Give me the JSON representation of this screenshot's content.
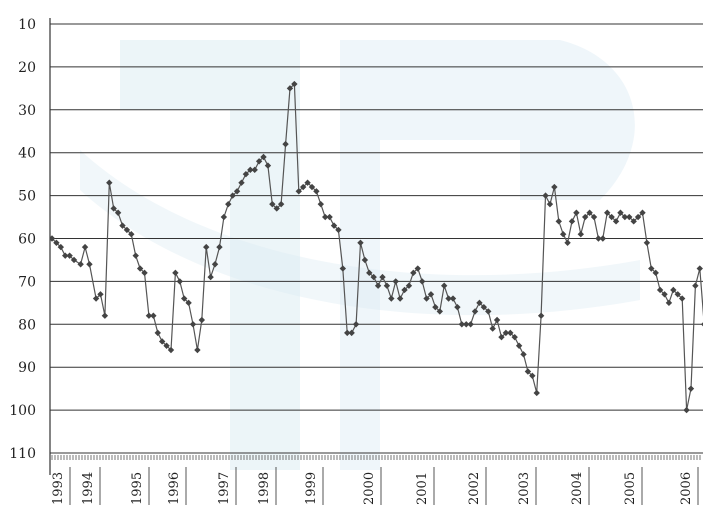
{
  "chart_data": {
    "type": "line",
    "title": "",
    "xlabel": "",
    "ylabel": "",
    "y_reversed": true,
    "ylim": [
      10,
      110
    ],
    "y_ticks": [
      "10",
      "20",
      "30",
      "40",
      "50",
      "60",
      "70",
      "80",
      "90",
      "100",
      "110"
    ],
    "x_ticks": [
      "1993",
      "1994",
      "1995",
      "1996",
      "1997",
      "1998",
      "1999",
      "2000",
      "2001",
      "2002",
      "2003",
      "2004",
      "2005",
      "2006"
    ],
    "grid": true,
    "marker": "diamond",
    "colors": {
      "line": "#555555",
      "marker": "#444444",
      "watermark": "#dcecf3"
    },
    "series": [
      {
        "values": [
          [
            1993.0,
            60
          ],
          [
            1993.1,
            61
          ],
          [
            1993.2,
            62
          ],
          [
            1993.3,
            64
          ],
          [
            1993.4,
            64
          ],
          [
            1993.5,
            65
          ],
          [
            1993.65,
            66
          ],
          [
            1993.75,
            62
          ],
          [
            1993.85,
            66
          ],
          [
            1994.0,
            74
          ],
          [
            1994.1,
            73
          ],
          [
            1994.2,
            78
          ],
          [
            1994.3,
            47
          ],
          [
            1994.4,
            53
          ],
          [
            1994.5,
            54
          ],
          [
            1994.6,
            57
          ],
          [
            1994.7,
            58
          ],
          [
            1994.8,
            59
          ],
          [
            1994.9,
            64
          ],
          [
            1995.0,
            67
          ],
          [
            1995.1,
            68
          ],
          [
            1995.2,
            78
          ],
          [
            1995.3,
            78
          ],
          [
            1995.4,
            82
          ],
          [
            1995.5,
            84
          ],
          [
            1995.6,
            85
          ],
          [
            1995.7,
            86
          ],
          [
            1995.8,
            68
          ],
          [
            1995.9,
            70
          ],
          [
            1996.0,
            74
          ],
          [
            1996.1,
            75
          ],
          [
            1996.2,
            80
          ],
          [
            1996.3,
            86
          ],
          [
            1996.4,
            79
          ],
          [
            1996.5,
            62
          ],
          [
            1996.6,
            69
          ],
          [
            1996.7,
            66
          ],
          [
            1996.8,
            62
          ],
          [
            1996.9,
            55
          ],
          [
            1997.0,
            52
          ],
          [
            1997.1,
            50
          ],
          [
            1997.2,
            49
          ],
          [
            1997.3,
            47
          ],
          [
            1997.4,
            45
          ],
          [
            1997.5,
            44
          ],
          [
            1997.6,
            44
          ],
          [
            1997.7,
            42
          ],
          [
            1997.8,
            41
          ],
          [
            1997.9,
            43
          ],
          [
            1998.0,
            52
          ],
          [
            1998.1,
            53
          ],
          [
            1998.2,
            52
          ],
          [
            1998.3,
            38
          ],
          [
            1998.4,
            25
          ],
          [
            1998.5,
            24
          ],
          [
            1998.6,
            49
          ],
          [
            1998.7,
            48
          ],
          [
            1998.8,
            47
          ],
          [
            1998.9,
            48
          ],
          [
            1999.0,
            49
          ],
          [
            1999.1,
            52
          ],
          [
            1999.2,
            55
          ],
          [
            1999.3,
            55
          ],
          [
            1999.4,
            57
          ],
          [
            1999.5,
            58
          ],
          [
            1999.6,
            67
          ],
          [
            1999.7,
            82
          ],
          [
            1999.8,
            82
          ],
          [
            1999.9,
            80
          ],
          [
            2000.0,
            61
          ],
          [
            2000.1,
            65
          ],
          [
            2000.2,
            68
          ],
          [
            2000.3,
            69
          ],
          [
            2000.4,
            71
          ],
          [
            2000.5,
            69
          ],
          [
            2000.6,
            71
          ],
          [
            2000.7,
            74
          ],
          [
            2000.8,
            70
          ],
          [
            2000.9,
            74
          ],
          [
            2001.0,
            72
          ],
          [
            2001.1,
            71
          ],
          [
            2001.2,
            68
          ],
          [
            2001.3,
            67
          ],
          [
            2001.4,
            70
          ],
          [
            2001.5,
            74
          ],
          [
            2001.6,
            73
          ],
          [
            2001.7,
            76
          ],
          [
            2001.8,
            77
          ],
          [
            2001.9,
            71
          ],
          [
            2002.0,
            74
          ],
          [
            2002.1,
            74
          ],
          [
            2002.2,
            76
          ],
          [
            2002.3,
            80
          ],
          [
            2002.4,
            80
          ],
          [
            2002.5,
            80
          ],
          [
            2002.6,
            77
          ],
          [
            2002.7,
            75
          ],
          [
            2002.8,
            76
          ],
          [
            2002.9,
            77
          ],
          [
            2003.0,
            81
          ],
          [
            2003.1,
            79
          ],
          [
            2003.2,
            83
          ],
          [
            2003.3,
            82
          ],
          [
            2003.4,
            82
          ],
          [
            2003.5,
            83
          ],
          [
            2003.6,
            85
          ],
          [
            2003.7,
            87
          ],
          [
            2003.8,
            91
          ],
          [
            2003.9,
            92
          ],
          [
            2004.0,
            96
          ],
          [
            2004.1,
            78
          ],
          [
            2004.2,
            50
          ],
          [
            2004.3,
            52
          ],
          [
            2004.4,
            48
          ],
          [
            2004.5,
            56
          ],
          [
            2004.6,
            59
          ],
          [
            2004.7,
            61
          ],
          [
            2004.8,
            56
          ],
          [
            2004.9,
            54
          ],
          [
            2005.0,
            59
          ],
          [
            2005.1,
            55
          ],
          [
            2005.2,
            54
          ],
          [
            2005.3,
            55
          ],
          [
            2005.4,
            60
          ],
          [
            2005.5,
            60
          ],
          [
            2005.6,
            54
          ],
          [
            2005.7,
            55
          ],
          [
            2005.8,
            56
          ],
          [
            2005.9,
            54
          ],
          [
            2006.0,
            55
          ],
          [
            2006.1,
            55
          ],
          [
            2006.2,
            56
          ],
          [
            2006.3,
            55
          ],
          [
            2006.4,
            54
          ],
          [
            2006.5,
            61
          ],
          [
            2006.6,
            67
          ],
          [
            2006.7,
            68
          ],
          [
            2006.8,
            72
          ],
          [
            2006.9,
            73
          ],
          [
            2007.0,
            75
          ],
          [
            2007.1,
            72
          ],
          [
            2007.2,
            73
          ],
          [
            2007.3,
            74
          ],
          [
            2007.4,
            100
          ],
          [
            2007.5,
            95
          ],
          [
            2007.6,
            71
          ],
          [
            2007.7,
            67
          ],
          [
            2007.8,
            80
          ],
          [
            2007.9,
            78
          ]
        ]
      }
    ]
  }
}
